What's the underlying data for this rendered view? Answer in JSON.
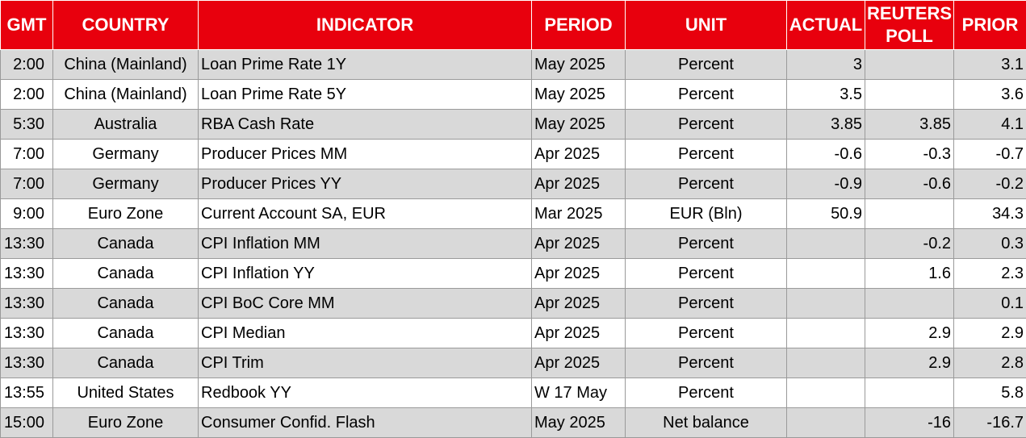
{
  "headers": [
    "GMT",
    "COUNTRY",
    "INDICATOR",
    "PERIOD",
    "UNIT",
    "ACTUAL",
    "REUTERS POLL",
    "PRIOR"
  ],
  "rows": [
    {
      "gmt": "2:00",
      "country": "China (Mainland)",
      "indicator": "Loan Prime Rate 1Y",
      "period": "May 2025",
      "unit": "Percent",
      "actual": "3",
      "poll": "",
      "prior": "3.1"
    },
    {
      "gmt": "2:00",
      "country": "China (Mainland)",
      "indicator": "Loan Prime Rate 5Y",
      "period": "May 2025",
      "unit": "Percent",
      "actual": "3.5",
      "poll": "",
      "prior": "3.6"
    },
    {
      "gmt": "5:30",
      "country": "Australia",
      "indicator": "RBA Cash Rate",
      "period": "May 2025",
      "unit": "Percent",
      "actual": "3.85",
      "poll": "3.85",
      "prior": "4.1"
    },
    {
      "gmt": "7:00",
      "country": "Germany",
      "indicator": "Producer Prices MM",
      "period": "Apr 2025",
      "unit": "Percent",
      "actual": "-0.6",
      "poll": "-0.3",
      "prior": "-0.7"
    },
    {
      "gmt": "7:00",
      "country": "Germany",
      "indicator": "Producer Prices YY",
      "period": "Apr 2025",
      "unit": "Percent",
      "actual": "-0.9",
      "poll": "-0.6",
      "prior": "-0.2"
    },
    {
      "gmt": "9:00",
      "country": "Euro Zone",
      "indicator": "Current Account SA, EUR",
      "period": "Mar 2025",
      "unit": "EUR (Bln)",
      "actual": "50.9",
      "poll": "",
      "prior": "34.3"
    },
    {
      "gmt": "13:30",
      "country": "Canada",
      "indicator": "CPI Inflation MM",
      "period": "Apr 2025",
      "unit": "Percent",
      "actual": "",
      "poll": "-0.2",
      "prior": "0.3"
    },
    {
      "gmt": "13:30",
      "country": "Canada",
      "indicator": "CPI Inflation YY",
      "period": "Apr 2025",
      "unit": "Percent",
      "actual": "",
      "poll": "1.6",
      "prior": "2.3"
    },
    {
      "gmt": "13:30",
      "country": "Canada",
      "indicator": "CPI BoC Core MM",
      "period": "Apr 2025",
      "unit": "Percent",
      "actual": "",
      "poll": "",
      "prior": "0.1"
    },
    {
      "gmt": "13:30",
      "country": "Canada",
      "indicator": "CPI Median",
      "period": "Apr 2025",
      "unit": "Percent",
      "actual": "",
      "poll": "2.9",
      "prior": "2.9"
    },
    {
      "gmt": "13:30",
      "country": "Canada",
      "indicator": "CPI Trim",
      "period": "Apr 2025",
      "unit": "Percent",
      "actual": "",
      "poll": "2.9",
      "prior": "2.8"
    },
    {
      "gmt": "13:55",
      "country": "United States",
      "indicator": "Redbook YY",
      "period": "W 17 May",
      "unit": "Percent",
      "actual": "",
      "poll": "",
      "prior": "5.8"
    },
    {
      "gmt": "15:00",
      "country": "Euro Zone",
      "indicator": "Consumer Confid. Flash",
      "period": "May 2025",
      "unit": "Net balance",
      "actual": "",
      "poll": "-16",
      "prior": "-16.7"
    }
  ]
}
